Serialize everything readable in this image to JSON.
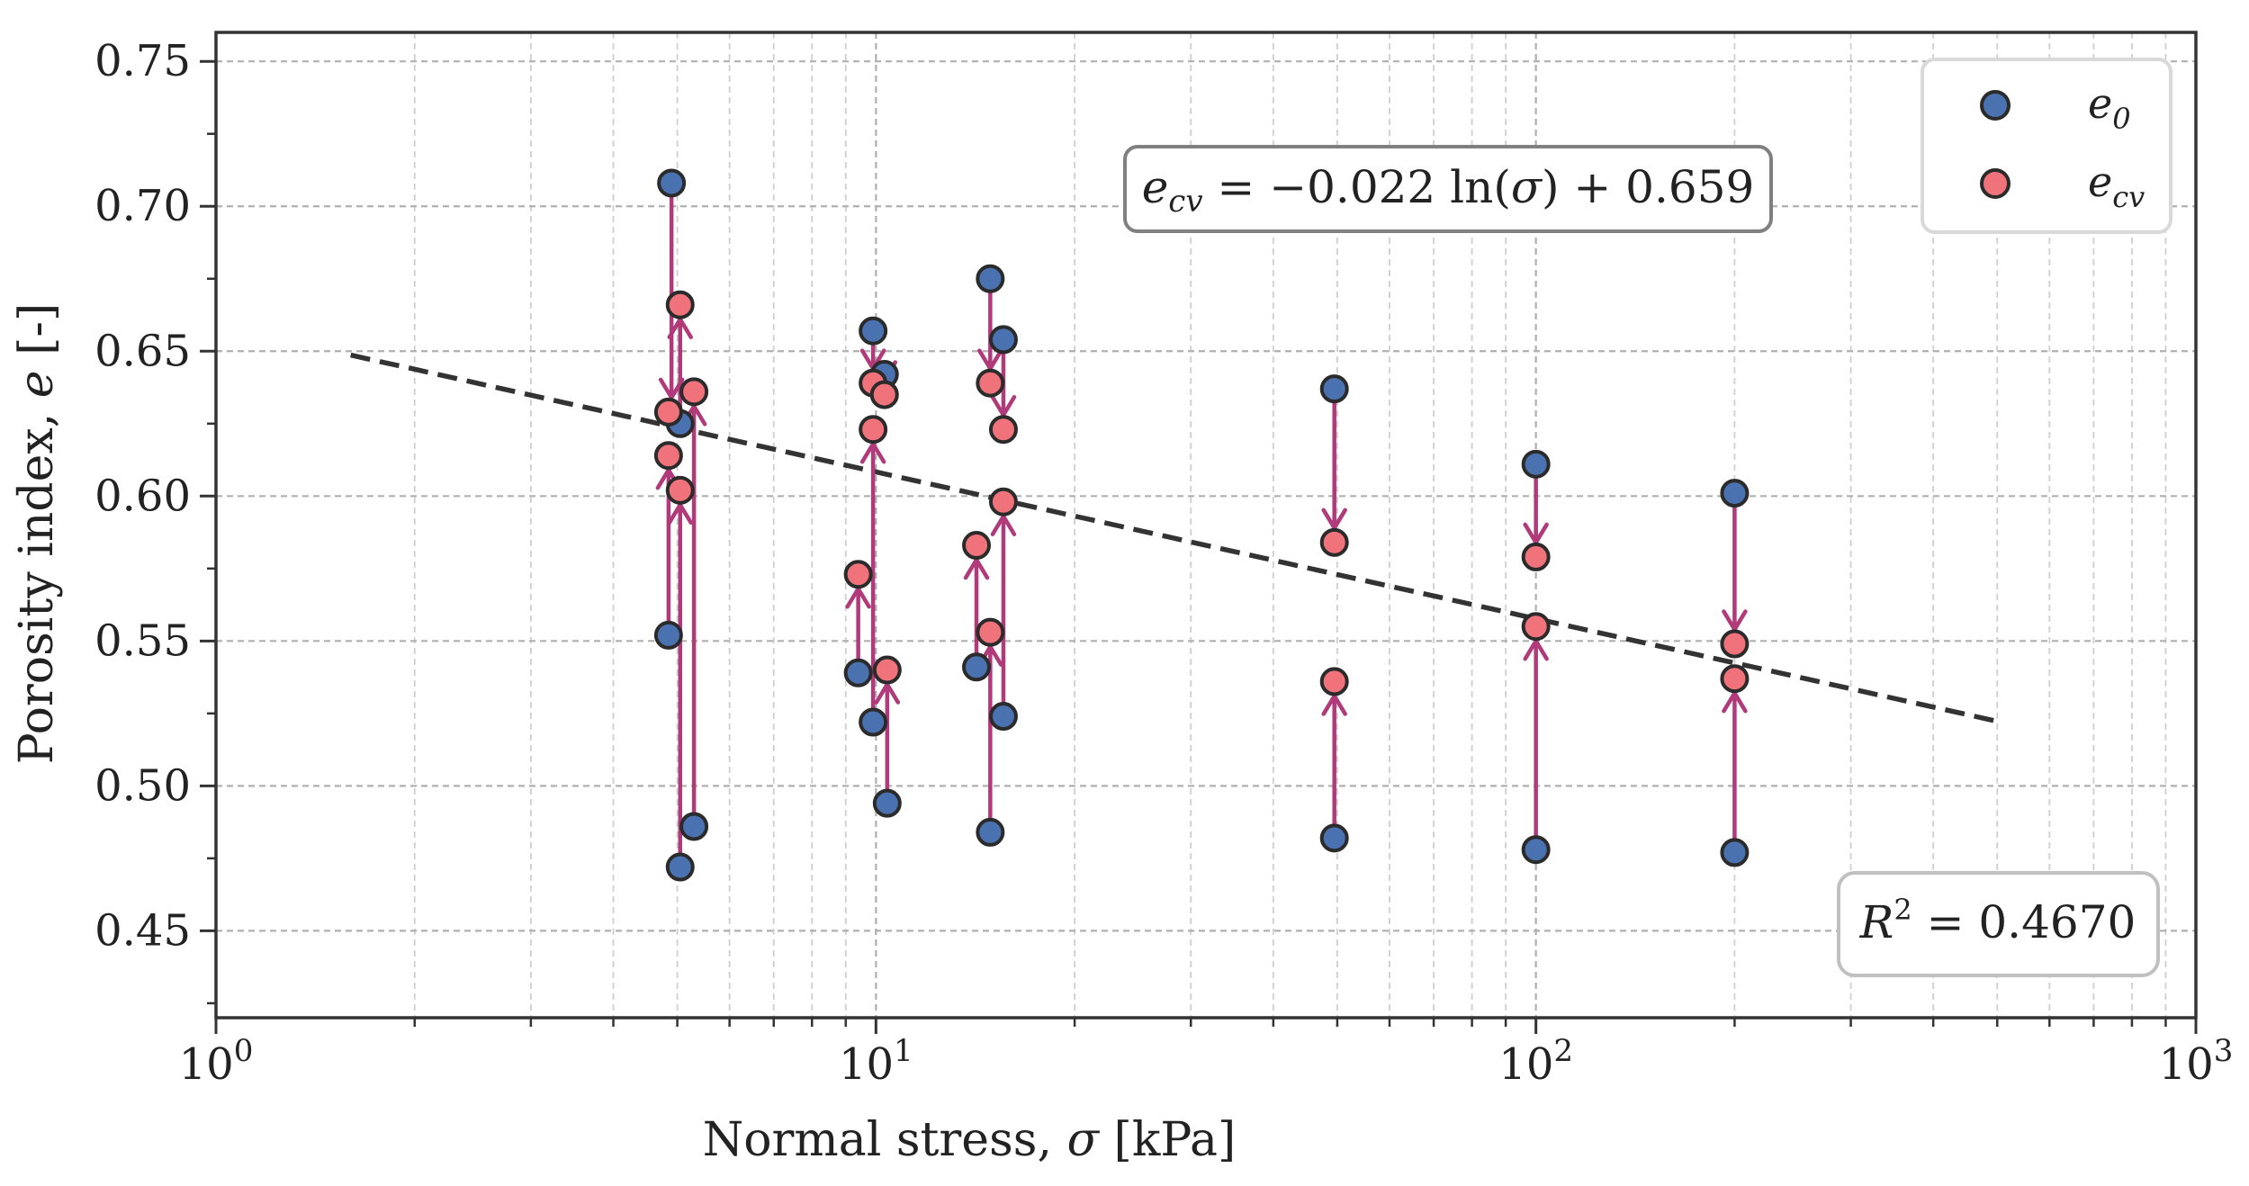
{
  "chart_data": {
    "type": "scatter",
    "xscale": "log",
    "xlim": [
      1,
      1000
    ],
    "ylim": [
      0.42,
      0.76
    ],
    "grid": true,
    "xlabel": "Normal stress, σ [kPa]",
    "ylabel": "Porosity index, e [-]",
    "x_ticks": [
      1,
      10,
      100,
      1000
    ],
    "x_tick_labels": [
      {
        "base": "10",
        "exp": "0"
      },
      {
        "base": "10",
        "exp": "1"
      },
      {
        "base": "10",
        "exp": "2"
      },
      {
        "base": "10",
        "exp": "3"
      }
    ],
    "y_ticks": [
      0.45,
      0.5,
      0.55,
      0.6,
      0.65,
      0.7,
      0.75
    ],
    "y_tick_labels": [
      "0.45",
      "0.50",
      "0.55",
      "0.60",
      "0.65",
      "0.70",
      "0.75"
    ],
    "legend": {
      "position": "top-right",
      "entries": [
        {
          "label": "e",
          "sub": "0",
          "color": "#4a72b0"
        },
        {
          "label": "e",
          "sub": "cv",
          "color": "#f0737b"
        }
      ]
    },
    "series": [
      {
        "name": "e0",
        "color": "#4a72b0",
        "points": [
          [
            4.9,
            0.708
          ],
          [
            4.85,
            0.552
          ],
          [
            5.05,
            0.625
          ],
          [
            5.05,
            0.472
          ],
          [
            5.3,
            0.486
          ],
          [
            9.4,
            0.539
          ],
          [
            9.9,
            0.657
          ],
          [
            9.9,
            0.522
          ],
          [
            10.3,
            0.642
          ],
          [
            10.4,
            0.494
          ],
          [
            14.2,
            0.541
          ],
          [
            14.9,
            0.675
          ],
          [
            14.9,
            0.484
          ],
          [
            15.6,
            0.654
          ],
          [
            15.6,
            0.524
          ],
          [
            49.5,
            0.637
          ],
          [
            49.5,
            0.482
          ],
          [
            100,
            0.611
          ],
          [
            100,
            0.478
          ],
          [
            200,
            0.601
          ],
          [
            200,
            0.477
          ]
        ]
      },
      {
        "name": "ecv",
        "color": "#f0737b",
        "points": [
          [
            4.85,
            0.629
          ],
          [
            4.85,
            0.614
          ],
          [
            5.05,
            0.666
          ],
          [
            5.05,
            0.602
          ],
          [
            5.3,
            0.636
          ],
          [
            9.4,
            0.573
          ],
          [
            9.9,
            0.639
          ],
          [
            9.9,
            0.623
          ],
          [
            10.3,
            0.635
          ],
          [
            10.4,
            0.54
          ],
          [
            14.2,
            0.583
          ],
          [
            14.9,
            0.639
          ],
          [
            14.9,
            0.553
          ],
          [
            15.6,
            0.623
          ],
          [
            15.6,
            0.598
          ],
          [
            49.5,
            0.584
          ],
          [
            49.5,
            0.536
          ],
          [
            100,
            0.579
          ],
          [
            100,
            0.555
          ],
          [
            200,
            0.549
          ],
          [
            200,
            0.537
          ]
        ]
      }
    ],
    "arrows": [
      {
        "x": 4.9,
        "from": 0.708,
        "to": 0.629
      },
      {
        "x": 4.85,
        "from": 0.552,
        "to": 0.614
      },
      {
        "x": 5.05,
        "from": 0.625,
        "to": 0.666
      },
      {
        "x": 5.05,
        "from": 0.472,
        "to": 0.602
      },
      {
        "x": 5.3,
        "from": 0.486,
        "to": 0.636
      },
      {
        "x": 9.4,
        "from": 0.539,
        "to": 0.573
      },
      {
        "x": 9.9,
        "from": 0.657,
        "to": 0.639
      },
      {
        "x": 9.9,
        "from": 0.522,
        "to": 0.623
      },
      {
        "x": 10.3,
        "from": 0.642,
        "to": 0.635
      },
      {
        "x": 10.4,
        "from": 0.494,
        "to": 0.54
      },
      {
        "x": 14.2,
        "from": 0.541,
        "to": 0.583
      },
      {
        "x": 14.9,
        "from": 0.675,
        "to": 0.639
      },
      {
        "x": 14.9,
        "from": 0.484,
        "to": 0.553
      },
      {
        "x": 15.6,
        "from": 0.654,
        "to": 0.623
      },
      {
        "x": 15.6,
        "from": 0.524,
        "to": 0.598
      },
      {
        "x": 49.5,
        "from": 0.637,
        "to": 0.584
      },
      {
        "x": 49.5,
        "from": 0.482,
        "to": 0.536
      },
      {
        "x": 100,
        "from": 0.611,
        "to": 0.579
      },
      {
        "x": 100,
        "from": 0.478,
        "to": 0.555
      },
      {
        "x": 200,
        "from": 0.601,
        "to": 0.549
      },
      {
        "x": 200,
        "from": 0.477,
        "to": 0.537
      }
    ],
    "arrow_color": "#b03a7a",
    "fit": {
      "type": "log",
      "a": -0.022,
      "b": 0.659,
      "x_range": [
        1.6,
        500
      ],
      "color": "#333333",
      "equation": "e_cv = −0.022 ln(σ) + 0.659",
      "r2": "R² = 0.4670"
    }
  }
}
